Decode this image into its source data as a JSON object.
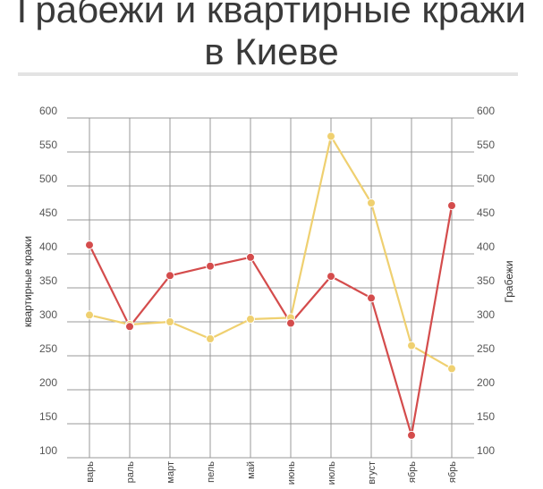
{
  "title_line1": "Грабежи и квартирные кражи",
  "title_line2": "в Киеве",
  "colors": {
    "burglary": "#d44c4c",
    "robbery": "#efd070",
    "grid": "#999999",
    "divider": "#e3e3e3"
  },
  "chart_data": {
    "type": "line",
    "categories": [
      "январь",
      "февраль",
      "март",
      "апрель",
      "май",
      "июнь",
      "июль",
      "август",
      "сентябрь",
      "октябрь"
    ],
    "category_labels_visible": [
      "варь",
      "раль",
      "март",
      "пель",
      "май",
      "июнь",
      "июль",
      "вгуст",
      "ябрь",
      "ябрь"
    ],
    "ylabel_left": "квартирные кражи",
    "ylabel_right": "Грабежи",
    "ylim": [
      100,
      600
    ],
    "yticks": [
      100,
      150,
      200,
      250,
      300,
      350,
      400,
      450,
      500,
      550,
      600
    ],
    "grid": true,
    "series": [
      {
        "name": "квартирные кражи",
        "axis": "left",
        "color": "#d44c4c",
        "values": [
          413,
          293,
          368,
          382,
          395,
          298,
          367,
          335,
          133,
          471
        ]
      },
      {
        "name": "Грабежи",
        "axis": "right",
        "color": "#efd070",
        "values": [
          310,
          296,
          300,
          275,
          304,
          306,
          573,
          475,
          265,
          231
        ]
      }
    ]
  }
}
